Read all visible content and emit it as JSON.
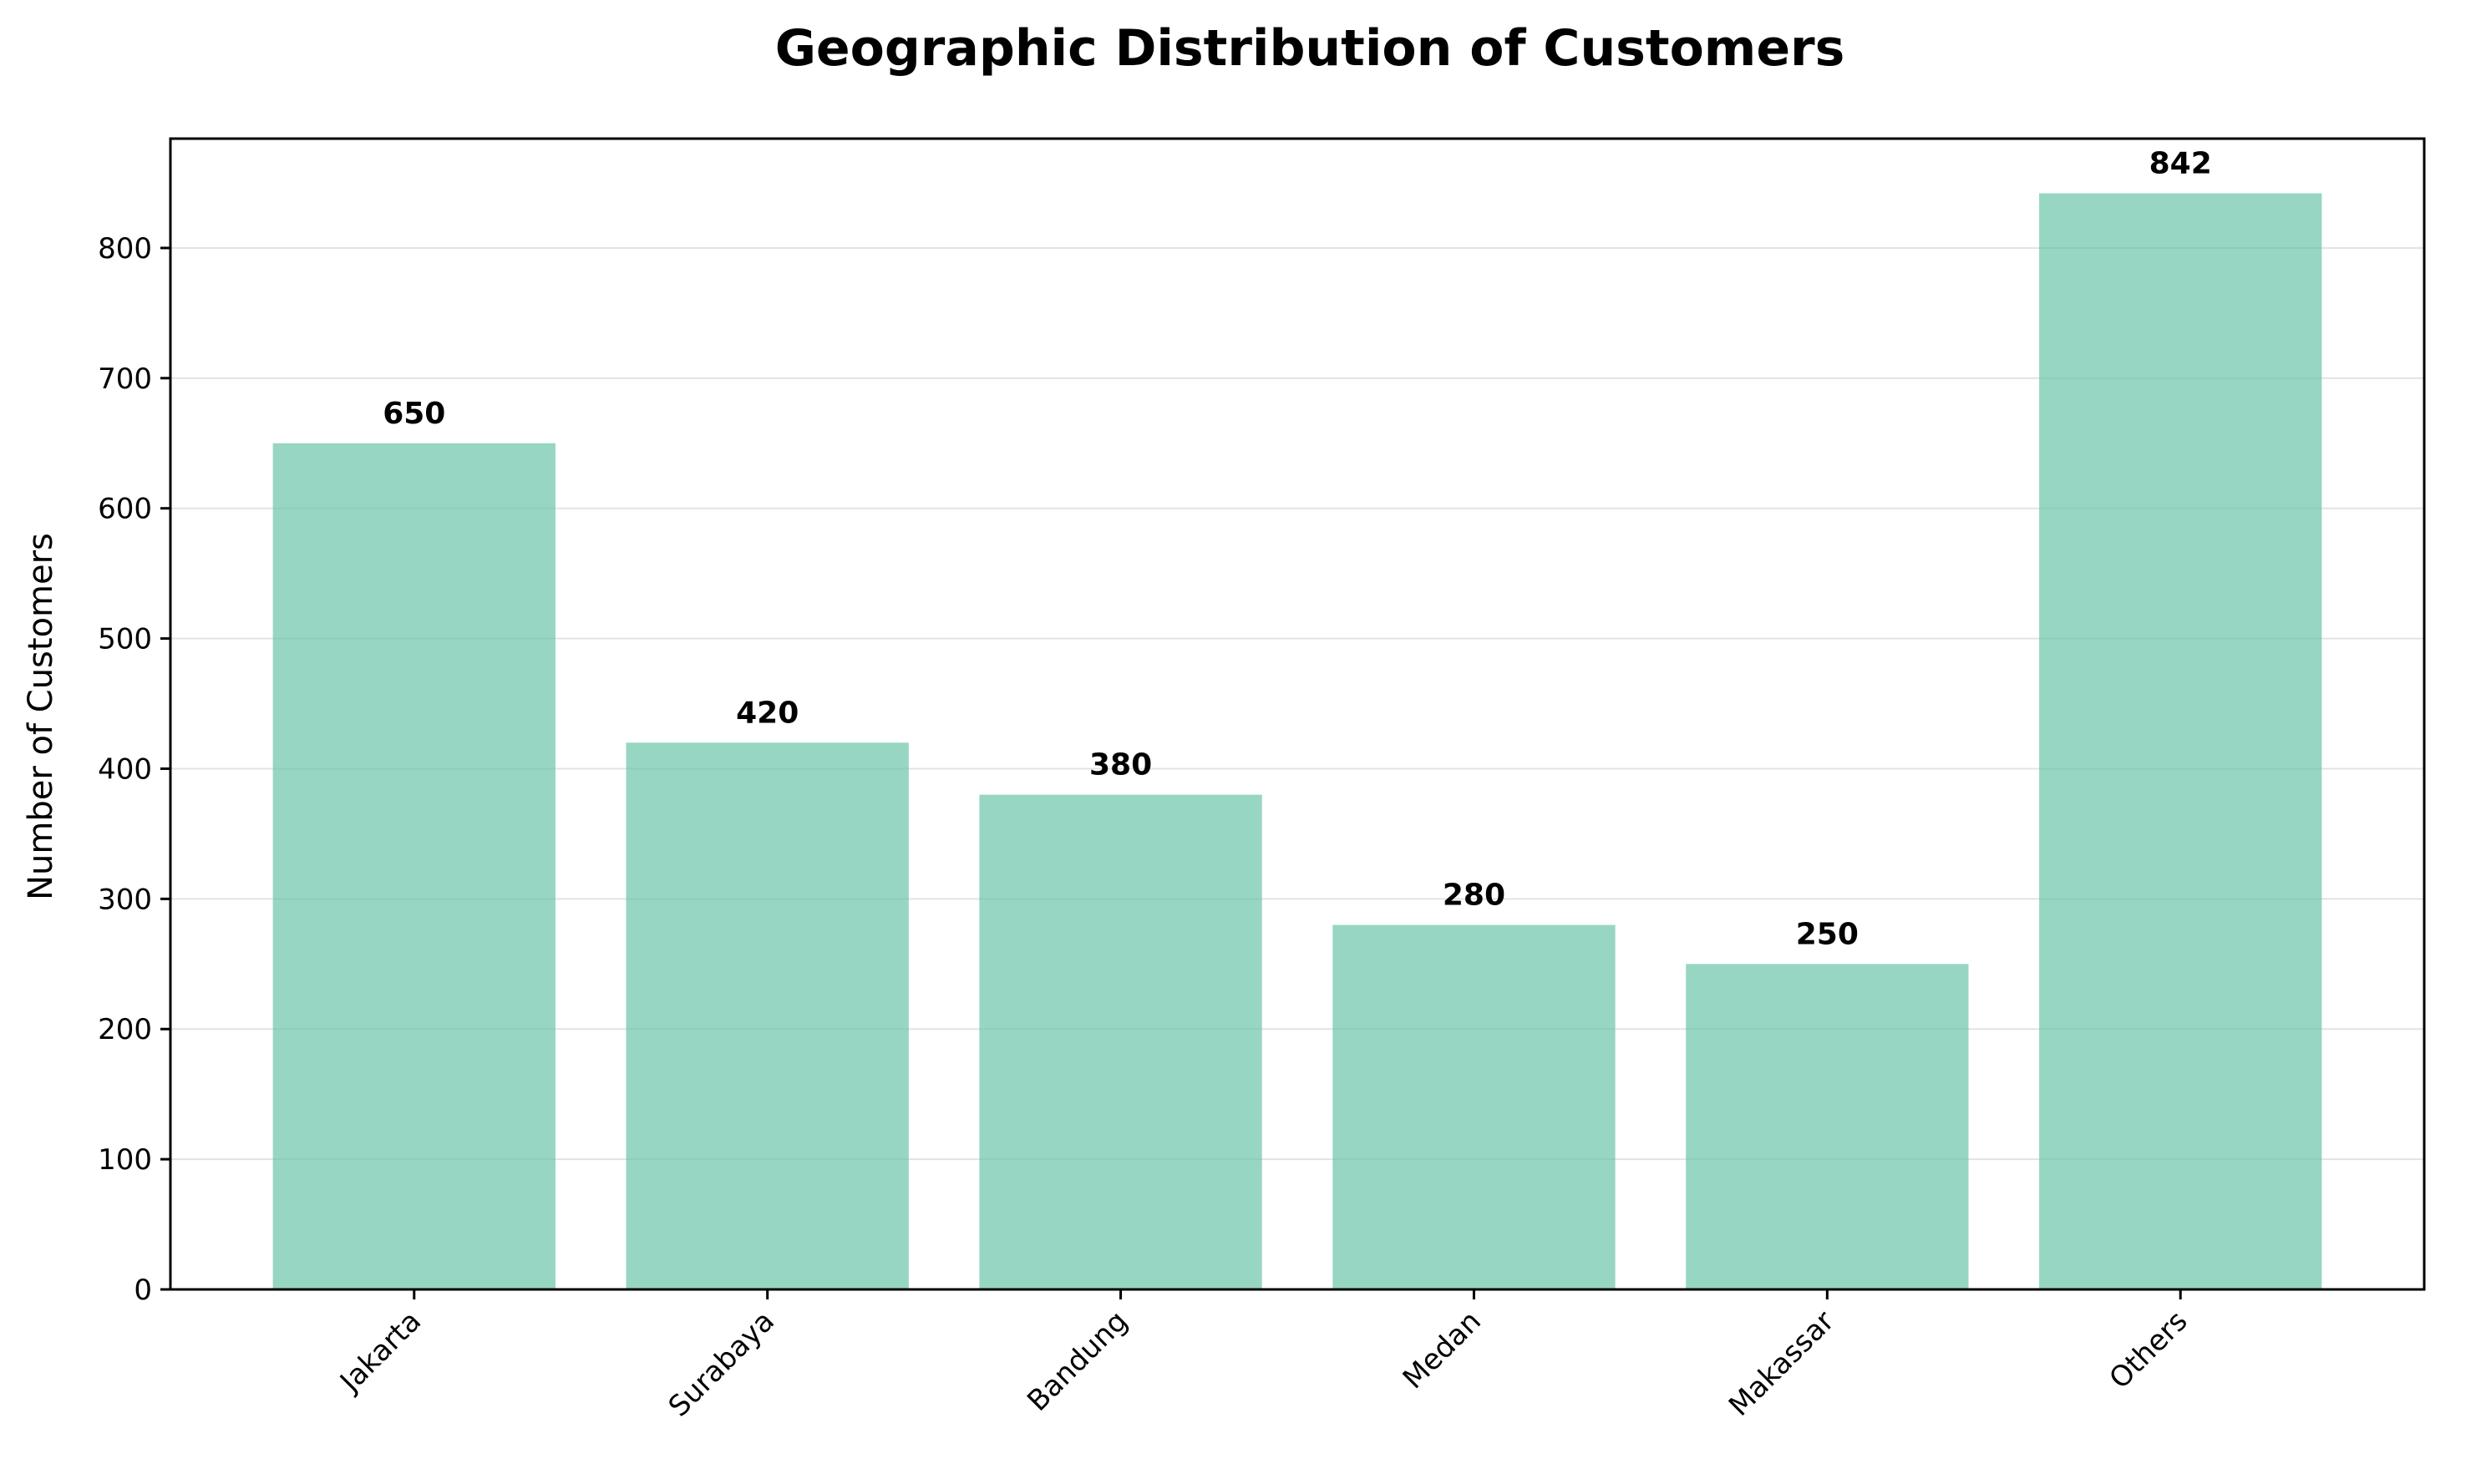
{
  "chart_data": {
    "type": "bar",
    "title": "Geographic Distribution of Customers",
    "xlabel": "",
    "ylabel": "Number of Customers",
    "categories": [
      "Jakarta",
      "Surabaya",
      "Bandung",
      "Medan",
      "Makassar",
      "Others"
    ],
    "values": [
      650,
      420,
      380,
      280,
      250,
      842
    ],
    "value_labels": [
      "650",
      "420",
      "380",
      "280",
      "250",
      "842"
    ],
    "ylim": [
      0,
      884
    ],
    "yticks": [
      0,
      100,
      200,
      300,
      400,
      500,
      600,
      700,
      800
    ],
    "ytick_labels": [
      "0",
      "100",
      "200",
      "300",
      "400",
      "500",
      "600",
      "700",
      "800"
    ],
    "grid": "horizontal",
    "bar_color": "#66c2a5",
    "bar_opacity": 0.68,
    "legend": "none"
  }
}
